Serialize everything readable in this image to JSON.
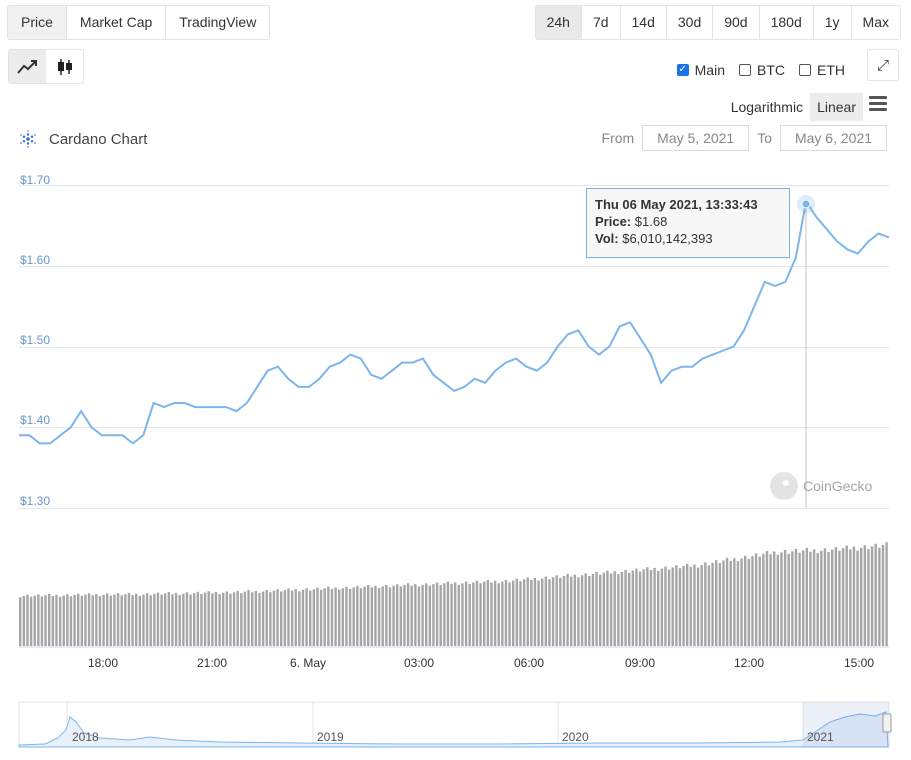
{
  "tabs": [
    "Price",
    "Market Cap",
    "TradingView"
  ],
  "active_tab": "Price",
  "ranges": [
    "24h",
    "7d",
    "14d",
    "30d",
    "90d",
    "180d",
    "1y",
    "Max"
  ],
  "active_range": "24h",
  "chart_types": [
    {
      "name": "line-chart-icon",
      "active": true
    },
    {
      "name": "candlestick-icon",
      "active": false
    }
  ],
  "series_toggles": [
    {
      "label": "Main",
      "checked": true
    },
    {
      "label": "BTC",
      "checked": false
    },
    {
      "label": "ETH",
      "checked": false
    }
  ],
  "scale": {
    "log_label": "Logarithmic",
    "linear_label": "Linear",
    "active": "Linear"
  },
  "chart_title": "Cardano Chart",
  "date_range": {
    "from_label": "From",
    "from_value": "May 5, 2021",
    "to_label": "To",
    "to_value": "May 6, 2021"
  },
  "tooltip": {
    "date": "Thu 06 May 2021, 13:33:43",
    "price_label": "Price:",
    "price_value": "$1.68",
    "vol_label": "Vol:",
    "vol_value": "$6,010,142,393"
  },
  "watermark": "CoinGecko",
  "colors": {
    "line": "#7cb5ec",
    "volume_bar": "#a6a6a6",
    "grid": "#e6e6e6",
    "axis_label": "#6a95c8"
  },
  "chart_data": {
    "type": "line",
    "ylim": [
      1.3,
      1.7
    ],
    "y_ticks": [
      "$1.70",
      "$1.60",
      "$1.50",
      "$1.40",
      "$1.30"
    ],
    "x_ticks": [
      "18:00",
      "21:00",
      "6. May",
      "03:00",
      "06:00",
      "09:00",
      "12:00",
      "15:00"
    ],
    "x_hours": [
      0,
      1,
      2,
      3,
      4,
      5,
      6,
      7,
      8,
      9,
      10,
      11,
      12,
      13,
      14,
      15,
      16,
      17,
      18,
      19,
      20,
      21,
      22,
      23,
      24
    ],
    "x_start_label": "May 5, 2021 ~16:00",
    "price": [
      1.39,
      1.39,
      1.38,
      1.38,
      1.39,
      1.4,
      1.42,
      1.4,
      1.39,
      1.39,
      1.39,
      1.38,
      1.39,
      1.43,
      1.425,
      1.43,
      1.43,
      1.425,
      1.425,
      1.425,
      1.425,
      1.42,
      1.43,
      1.45,
      1.47,
      1.475,
      1.46,
      1.45,
      1.45,
      1.46,
      1.475,
      1.48,
      1.49,
      1.485,
      1.465,
      1.46,
      1.47,
      1.48,
      1.48,
      1.485,
      1.465,
      1.455,
      1.445,
      1.45,
      1.46,
      1.455,
      1.47,
      1.48,
      1.485,
      1.475,
      1.47,
      1.48,
      1.5,
      1.515,
      1.52,
      1.5,
      1.49,
      1.5,
      1.525,
      1.53,
      1.51,
      1.49,
      1.455,
      1.47,
      1.475,
      1.475,
      1.485,
      1.49,
      1.495,
      1.5,
      1.52,
      1.55,
      1.58,
      1.575,
      1.58,
      1.61,
      1.68,
      1.66,
      1.645,
      1.63,
      1.62,
      1.615,
      1.63,
      1.64,
      1.635
    ],
    "volume_title": "Vol",
    "volume_relative": [
      0.45,
      0.45,
      0.455,
      0.46,
      0.46,
      0.465,
      0.47,
      0.475,
      0.48,
      0.49,
      0.5,
      0.51,
      0.52,
      0.53,
      0.54,
      0.55,
      0.56,
      0.57,
      0.58,
      0.6,
      0.62,
      0.64,
      0.66,
      0.68,
      0.7,
      0.72,
      0.76,
      0.8,
      0.84,
      0.85,
      0.86,
      0.88,
      0.9
    ],
    "navigator_years": [
      "2018",
      "2019",
      "2020",
      "2021"
    ]
  }
}
